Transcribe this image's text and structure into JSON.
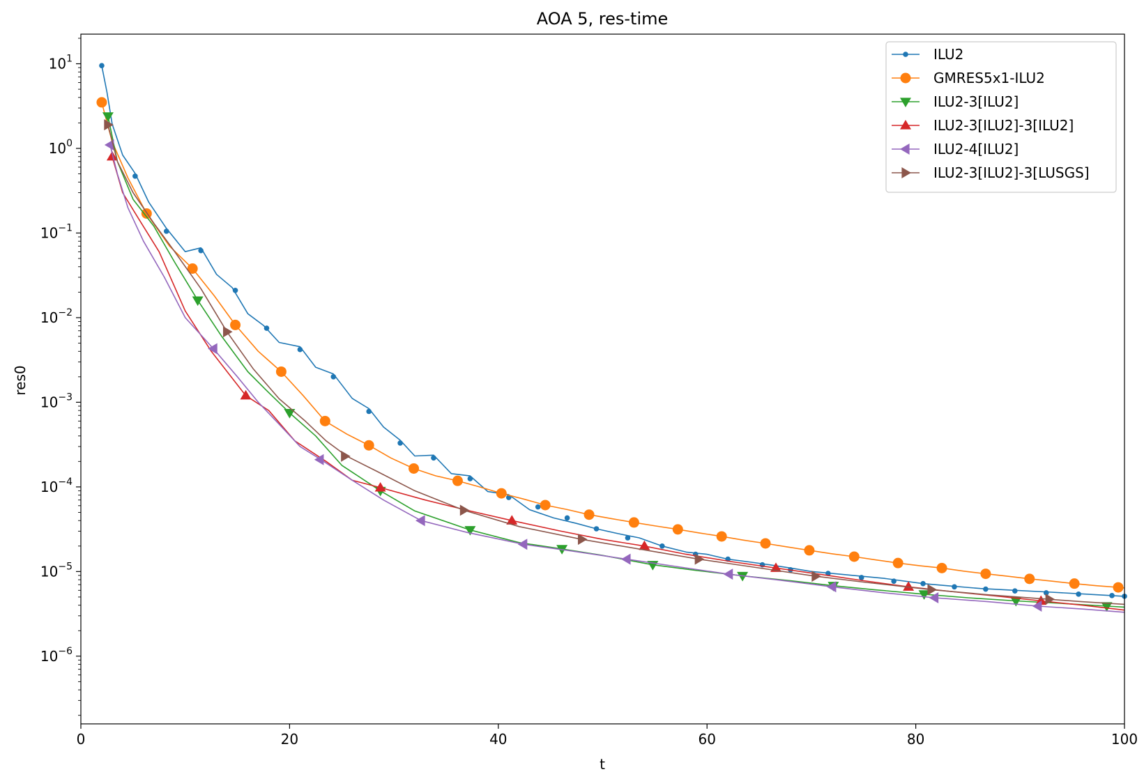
{
  "chart_data": {
    "type": "line",
    "title": "AOA 5, res-time",
    "xlabel": "t",
    "ylabel": "res0",
    "yscale": "log",
    "xlim": [
      0,
      100
    ],
    "ylim_exp": [
      -6.8,
      1.35
    ],
    "x_ticks": [
      {
        "value": 0,
        "label": "0"
      },
      {
        "value": 20,
        "label": "20"
      },
      {
        "value": 40,
        "label": "40"
      },
      {
        "value": 60,
        "label": "60"
      },
      {
        "value": 80,
        "label": "80"
      },
      {
        "value": 100,
        "label": "100"
      }
    ],
    "y_ticks": [
      {
        "exp": 1,
        "base": "10",
        "sup": "1"
      },
      {
        "exp": 0,
        "base": "10",
        "sup": "0"
      },
      {
        "exp": -1,
        "base": "10",
        "sup": "−1"
      },
      {
        "exp": -2,
        "base": "10",
        "sup": "−2"
      },
      {
        "exp": -3,
        "base": "10",
        "sup": "−3"
      },
      {
        "exp": -4,
        "base": "10",
        "sup": "−4"
      },
      {
        "exp": -5,
        "base": "10",
        "sup": "−5"
      },
      {
        "exp": -6,
        "base": "10",
        "sup": "−6"
      }
    ],
    "legend_position": "top-right",
    "series": [
      {
        "name": "ILU2",
        "color": "#1f77b4",
        "marker": "dot",
        "x": [
          2.0,
          2.5,
          3.0,
          4.0,
          5.2,
          6.5,
          8.2,
          10.0,
          11.5,
          13.0,
          14.5,
          16.0,
          17.5,
          19.0,
          21.0,
          22.5,
          24.2,
          26.0,
          27.6,
          29.0,
          30.6,
          32.0,
          33.8,
          35.5,
          37.3,
          39.0,
          41.0,
          43.0,
          45.3,
          47.5,
          49.4,
          51.5,
          53.5,
          55.7,
          58.0,
          60.0,
          62.0,
          64.0,
          66.0,
          68.0,
          70.0,
          72.0,
          74.0,
          77.0,
          80.7,
          83.0,
          86.2,
          89.5,
          93.0,
          96.5,
          100.0
        ],
        "y": [
          9.5,
          5.0,
          1.8,
          0.9,
          0.47,
          0.25,
          0.105,
          0.065,
          0.062,
          0.035,
          0.021,
          0.012,
          0.0075,
          0.0055,
          0.0042,
          0.0028,
          0.002,
          0.0012,
          0.00078,
          0.00055,
          0.00033,
          0.00025,
          0.00022,
          0.000155,
          0.000125,
          9.5e-05,
          7.5e-05,
          5.8e-05,
          4.3e-05,
          3.7e-05,
          3.2e-05,
          2.8e-05,
          2.5e-05,
          2e-05,
          1.7e-05,
          1.6e-05,
          1.4e-05,
          1.3e-05,
          1.2e-05,
          1.1e-05,
          1e-05,
          9.5e-06,
          9e-06,
          8.3e-06,
          7.2e-06,
          6.8e-06,
          6.3e-06,
          6e-06,
          5.7e-06,
          5.4e-06,
          5.1e-06
        ],
        "marker_x": [
          2.0,
          5.2,
          8.2,
          11.5,
          14.8,
          17.8,
          21.0,
          24.2,
          27.6,
          30.6,
          33.8,
          37.3,
          41.0,
          43.8,
          46.6,
          49.4,
          52.4,
          55.7,
          58.9,
          62.0,
          65.3,
          68.0,
          71.6,
          74.8,
          77.9,
          80.7,
          83.7,
          86.7,
          89.5,
          92.5,
          95.6,
          98.8,
          100.0
        ],
        "marker_y": [
          9.5,
          0.47,
          0.105,
          0.062,
          0.021,
          0.0075,
          0.0042,
          0.002,
          0.00078,
          0.00033,
          0.00022,
          0.000125,
          7.5e-05,
          5.8e-05,
          4.3e-05,
          3.2e-05,
          2.5e-05,
          2e-05,
          1.6e-05,
          1.4e-05,
          1.2e-05,
          1.05e-05,
          9.5e-06,
          8.5e-06,
          7.7e-06,
          7.2e-06,
          6.6e-06,
          6.2e-06,
          5.9e-06,
          5.6e-06,
          5.4e-06,
          5.2e-06,
          5.1e-06
        ]
      },
      {
        "name": "GMRES5x1-ILU2",
        "color": "#ff7f0e",
        "marker": "circle",
        "x": [
          2.0,
          3.0,
          4.5,
          6.3,
          8.5,
          10.7,
          12.8,
          14.8,
          17.0,
          19.2,
          21.3,
          23.4,
          25.5,
          27.6,
          29.7,
          31.9,
          34.0,
          36.1,
          38.2,
          40.3,
          42.4,
          44.5,
          46.6,
          48.7,
          50.9,
          53.0,
          55.1,
          57.2,
          59.3,
          61.4,
          63.5,
          65.6,
          67.7,
          69.8,
          72.0,
          74.1,
          76.2,
          78.3,
          80.4,
          82.5,
          84.6,
          86.7,
          88.8,
          90.9,
          93.0,
          95.2,
          97.3,
          99.4,
          100.0
        ],
        "y": [
          3.5,
          1.2,
          0.45,
          0.17,
          0.07,
          0.038,
          0.018,
          0.0082,
          0.004,
          0.0023,
          0.0012,
          0.0006,
          0.00042,
          0.00031,
          0.00022,
          0.000165,
          0.000135,
          0.000118,
          0.0001,
          8.4e-05,
          7.2e-05,
          6.1e-05,
          5.4e-05,
          4.7e-05,
          4.2e-05,
          3.8e-05,
          3.45e-05,
          3.15e-05,
          2.85e-05,
          2.6e-05,
          2.35e-05,
          2.15e-05,
          1.95e-05,
          1.78e-05,
          1.62e-05,
          1.5e-05,
          1.37e-05,
          1.26e-05,
          1.17e-05,
          1.1e-05,
          1.01e-05,
          9.4e-06,
          8.8e-06,
          8.2e-06,
          7.7e-06,
          7.2e-06,
          6.8e-06,
          6.5e-06,
          6.4e-06
        ],
        "marker_x": [
          2.0,
          6.3,
          10.7,
          14.8,
          19.2,
          23.4,
          27.6,
          31.9,
          36.1,
          40.3,
          44.5,
          48.7,
          53.0,
          57.2,
          61.4,
          65.6,
          69.8,
          74.1,
          78.3,
          82.5,
          86.7,
          90.9,
          95.2,
          99.4
        ],
        "marker_y": [
          3.5,
          0.17,
          0.038,
          0.0082,
          0.0023,
          0.0006,
          0.00031,
          0.000165,
          0.000118,
          8.4e-05,
          6.1e-05,
          4.7e-05,
          3.8e-05,
          3.15e-05,
          2.6e-05,
          2.15e-05,
          1.78e-05,
          1.5e-05,
          1.26e-05,
          1.1e-05,
          9.4e-06,
          8.2e-06,
          7.2e-06,
          6.5e-06
        ]
      },
      {
        "name": "ILU2-3[ILU2]",
        "color": "#2ca02c",
        "marker": "triangle-down",
        "x": [
          2.6,
          3.5,
          5.0,
          7.0,
          9.0,
          11.2,
          13.5,
          16.0,
          18.0,
          20.0,
          22.5,
          25.0,
          28.7,
          32.0,
          37.3,
          42.0,
          46.1,
          50.0,
          54.8,
          59.0,
          63.4,
          68.0,
          72.1,
          76.0,
          80.8,
          85.0,
          89.6,
          94.0,
          98.3,
          100.0
        ],
        "y": [
          2.4,
          0.7,
          0.25,
          0.12,
          0.045,
          0.016,
          0.006,
          0.0023,
          0.0013,
          0.00075,
          0.0004,
          0.00018,
          9e-05,
          5.2e-05,
          3.1e-05,
          2.2e-05,
          1.85e-05,
          1.55e-05,
          1.2e-05,
          1.03e-05,
          8.9e-06,
          7.8e-06,
          6.8e-06,
          6.1e-06,
          5.4e-06,
          4.9e-06,
          4.5e-06,
          4.2e-06,
          3.9e-06,
          3.8e-06
        ],
        "marker_x": [
          2.6,
          11.2,
          20.0,
          28.7,
          37.3,
          46.1,
          54.8,
          63.4,
          72.1,
          80.8,
          89.6,
          98.3
        ],
        "marker_y": [
          2.4,
          0.016,
          0.00075,
          9e-05,
          3.1e-05,
          1.85e-05,
          1.2e-05,
          8.9e-06,
          6.8e-06,
          5.4e-06,
          4.5e-06,
          3.9e-06
        ]
      },
      {
        "name": "ILU2-3[ILU2]-3[ILU2]",
        "color": "#d62728",
        "marker": "triangle-up",
        "x": [
          3.0,
          4.0,
          5.5,
          7.5,
          10.0,
          12.5,
          15.8,
          18.0,
          20.5,
          23.5,
          26.0,
          28.7,
          33.0,
          37.0,
          41.3,
          46.0,
          50.0,
          54.0,
          58.0,
          62.5,
          66.6,
          71.0,
          75.0,
          79.3,
          84.0,
          88.0,
          92.0,
          96.0,
          100.0
        ],
        "y": [
          0.8,
          0.3,
          0.15,
          0.06,
          0.012,
          0.004,
          0.0012,
          0.0008,
          0.00035,
          0.0002,
          0.00012,
          9.8e-05,
          7e-05,
          5.3e-05,
          4e-05,
          3e-05,
          2.4e-05,
          2e-05,
          1.6e-05,
          1.3e-05,
          1.1e-05,
          9.2e-06,
          7.8e-06,
          6.6e-06,
          5.7e-06,
          5.1e-06,
          4.5e-06,
          4e-06,
          3.5e-06
        ],
        "marker_x": [
          3.0,
          15.8,
          28.7,
          41.3,
          54.0,
          66.6,
          79.3,
          92.0
        ],
        "marker_y": [
          0.8,
          0.0012,
          9.8e-05,
          4e-05,
          2e-05,
          1.1e-05,
          6.6e-06,
          4.5e-06
        ]
      },
      {
        "name": "ILU2-4[ILU2]",
        "color": "#9467bd",
        "marker": "triangle-left",
        "x": [
          2.8,
          3.5,
          4.5,
          6.0,
          8.0,
          10.0,
          12.7,
          15.0,
          17.0,
          19.0,
          21.0,
          23.0,
          26.0,
          29.0,
          32.6,
          37.0,
          42.4,
          47.0,
          52.3,
          57.0,
          62.1,
          67.0,
          72.0,
          77.0,
          81.8,
          87.0,
          91.7,
          96.0,
          100.0
        ],
        "y": [
          1.1,
          0.5,
          0.2,
          0.08,
          0.03,
          0.01,
          0.0043,
          0.002,
          0.001,
          0.00055,
          0.0003,
          0.00021,
          0.00012,
          7e-05,
          4e-05,
          2.9e-05,
          2.1e-05,
          1.75e-05,
          1.4e-05,
          1.15e-05,
          9.3e-06,
          7.9e-06,
          6.6e-06,
          5.6e-06,
          4.9e-06,
          4.4e-06,
          3.9e-06,
          3.6e-06,
          3.3e-06
        ],
        "marker_x": [
          2.8,
          12.7,
          22.9,
          32.6,
          42.4,
          52.3,
          62.1,
          72.0,
          81.8,
          91.7
        ],
        "marker_y": [
          1.1,
          0.0043,
          0.00021,
          4e-05,
          2.1e-05,
          1.4e-05,
          9.3e-06,
          6.6e-06,
          4.9e-06,
          3.9e-06
        ]
      },
      {
        "name": "ILU2-3[ILU2]-3[LUSGS]",
        "color": "#8c564b",
        "marker": "triangle-right",
        "x": [
          2.6,
          3.5,
          5.0,
          7.0,
          9.0,
          11.5,
          14.0,
          16.5,
          19.0,
          21.5,
          23.5,
          25.5,
          28.5,
          32.0,
          36.7,
          42.0,
          48.0,
          54.0,
          59.2,
          64.0,
          70.4,
          75.0,
          81.5,
          87.0,
          92.8,
          96.0,
          100.0
        ],
        "y": [
          1.9,
          0.7,
          0.3,
          0.13,
          0.06,
          0.022,
          0.0068,
          0.0025,
          0.0011,
          0.0006,
          0.00035,
          0.00023,
          0.00015,
          9e-05,
          5.3e-05,
          3.4e-05,
          2.4e-05,
          1.8e-05,
          1.4e-05,
          1.15e-05,
          8.8e-06,
          7.5e-06,
          6.1e-06,
          5.3e-06,
          4.7e-06,
          4.4e-06,
          4.1e-06
        ],
        "marker_x": [
          2.6,
          14.0,
          25.3,
          36.7,
          48.0,
          59.2,
          70.4,
          81.5,
          92.8
        ],
        "marker_y": [
          1.9,
          0.0068,
          0.00023,
          5.3e-05,
          2.4e-05,
          1.4e-05,
          8.8e-06,
          6.1e-06,
          4.7e-06
        ]
      }
    ]
  }
}
